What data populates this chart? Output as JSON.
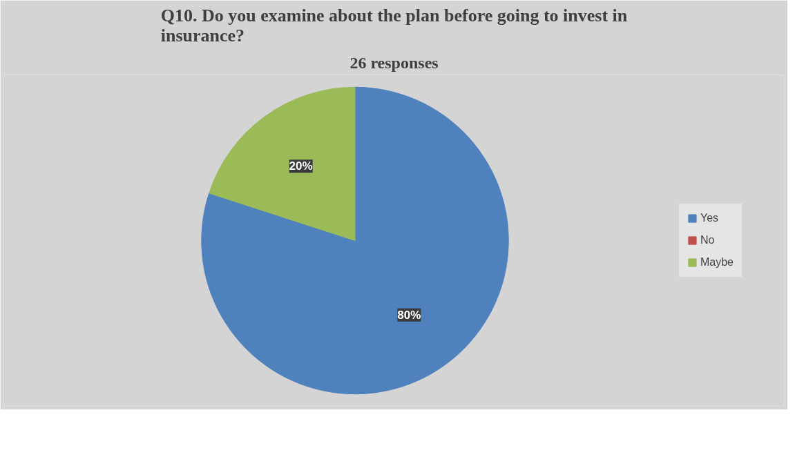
{
  "chart_data": {
    "type": "pie",
    "title": "Q10. Do you examine about the plan before going to invest in insurance?",
    "subtitle": "26 responses",
    "categories": [
      "Yes",
      "No",
      "Maybe"
    ],
    "values": [
      80,
      0,
      20
    ],
    "colors": [
      "#4f81bd",
      "#c0504d",
      "#9bbb59"
    ],
    "value_labels": [
      "80%",
      null,
      "20%"
    ],
    "legend": "right"
  }
}
